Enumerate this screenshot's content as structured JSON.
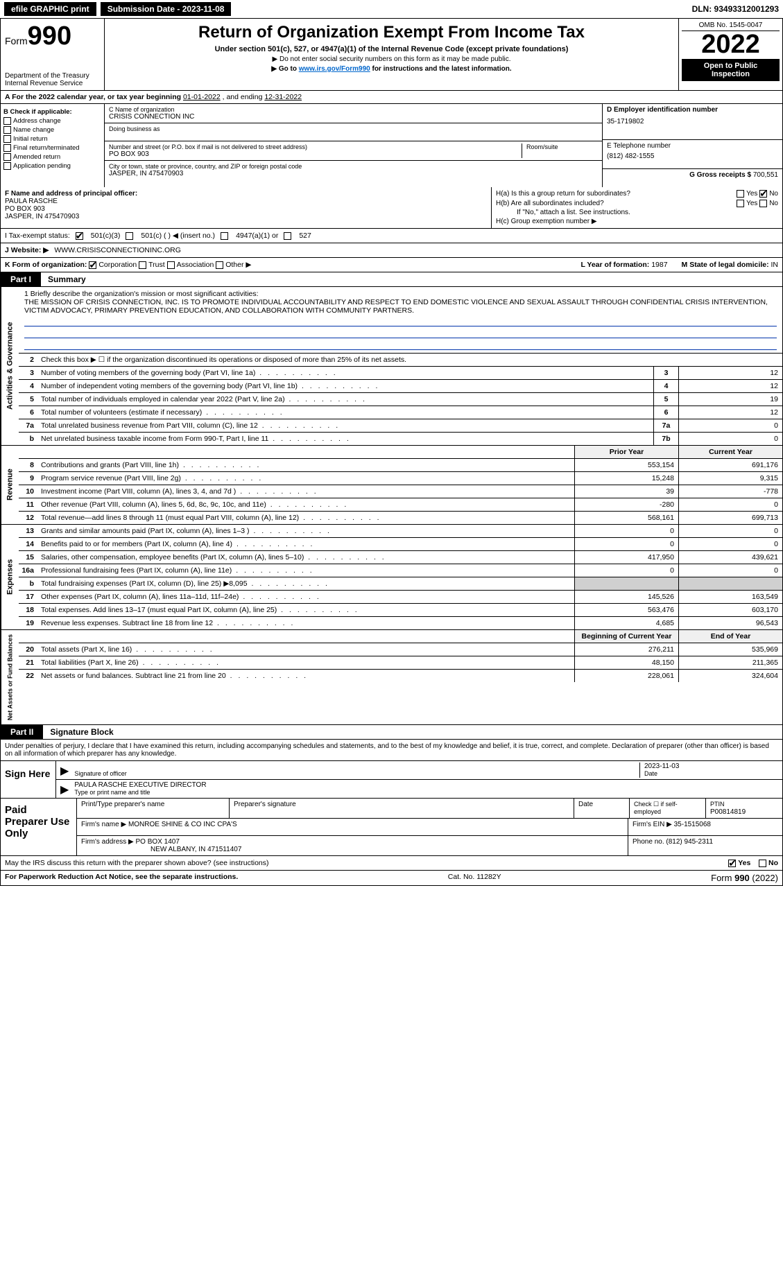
{
  "topbar": {
    "efile": "efile GRAPHIC print",
    "submission_label": "Submission Date - 2023-11-08",
    "dln": "DLN: 93493312001293"
  },
  "header": {
    "form_prefix": "Form",
    "form_number": "990",
    "dept": "Department of the Treasury",
    "irs": "Internal Revenue Service",
    "title": "Return of Organization Exempt From Income Tax",
    "subtitle": "Under section 501(c), 527, or 4947(a)(1) of the Internal Revenue Code (except private foundations)",
    "note1": "▶ Do not enter social security numbers on this form as it may be made public.",
    "note2_pre": "▶ Go to ",
    "note2_link": "www.irs.gov/Form990",
    "note2_post": " for instructions and the latest information.",
    "omb": "OMB No. 1545-0047",
    "year": "2022",
    "open": "Open to Public Inspection"
  },
  "rowA": {
    "text_pre": "A For the 2022 calendar year, or tax year beginning ",
    "begin": "01-01-2022",
    "mid": " , and ending ",
    "end": "12-31-2022"
  },
  "colB": {
    "hdr": "B Check if applicable:",
    "items": [
      "Address change",
      "Name change",
      "Initial return",
      "Final return/terminated",
      "Amended return",
      "Application pending"
    ]
  },
  "colC": {
    "name_lbl": "C Name of organization",
    "name": "CRISIS CONNECTION INC",
    "dba_lbl": "Doing business as",
    "street_lbl": "Number and street (or P.O. box if mail is not delivered to street address)",
    "room_lbl": "Room/suite",
    "street": "PO BOX 903",
    "city_lbl": "City or town, state or province, country, and ZIP or foreign postal code",
    "city": "JASPER, IN  475470903"
  },
  "colDE": {
    "d_lbl": "D Employer identification number",
    "ein": "35-1719802",
    "e_lbl": "E Telephone number",
    "phone": "(812) 482-1555",
    "g_lbl": "G Gross receipts $",
    "g_val": "700,551"
  },
  "rowF": {
    "lbl": "F Name and address of principal officer:",
    "name": "PAULA RASCHE",
    "addr1": "PO BOX 903",
    "addr2": "JASPER, IN  475470903"
  },
  "rowH": {
    "a": "H(a)  Is this a group return for subordinates?",
    "b": "H(b)  Are all subordinates included?",
    "b_note": "If \"No,\" attach a list. See instructions.",
    "c": "H(c)  Group exemption number ▶",
    "yes": "Yes",
    "no": "No"
  },
  "rowI": {
    "lbl": "I  Tax-exempt status:",
    "o1": "501(c)(3)",
    "o2": "501(c) (  ) ◀ (insert no.)",
    "o3": "4947(a)(1) or",
    "o4": "527"
  },
  "rowJ": {
    "lbl": "J  Website: ▶",
    "val": "WWW.CRISISCONNECTIONINC.ORG"
  },
  "rowK": {
    "lbl": "K Form of organization:",
    "o1": "Corporation",
    "o2": "Trust",
    "o3": "Association",
    "o4": "Other ▶"
  },
  "rowL": {
    "l": "L Year of formation:",
    "lval": "1987",
    "m": "M State of legal domicile:",
    "mval": "IN"
  },
  "part1": {
    "tag": "Part I",
    "title": "Summary"
  },
  "mission": {
    "lbl": "1  Briefly describe the organization's mission or most significant activities:",
    "text": "THE MISSION OF CRISIS CONNECTION, INC. IS TO PROMOTE INDIVIDUAL ACCOUNTABILITY AND RESPECT TO END DOMESTIC VIOLENCE AND SEXUAL ASSAULT THROUGH CONFIDENTIAL CRISIS INTERVENTION, VICTIM ADVOCACY, PRIMARY PREVENTION EDUCATION, AND COLLABORATION WITH COMMUNITY PARTNERS."
  },
  "gov": {
    "side": "Activities & Governance",
    "l2": "Check this box ▶ ☐ if the organization discontinued its operations or disposed of more than 25% of its net assets.",
    "rows": [
      {
        "n": "3",
        "lbl": "Number of voting members of the governing body (Part VI, line 1a)",
        "box": "3",
        "v": "12"
      },
      {
        "n": "4",
        "lbl": "Number of independent voting members of the governing body (Part VI, line 1b)",
        "box": "4",
        "v": "12"
      },
      {
        "n": "5",
        "lbl": "Total number of individuals employed in calendar year 2022 (Part V, line 2a)",
        "box": "5",
        "v": "19"
      },
      {
        "n": "6",
        "lbl": "Total number of volunteers (estimate if necessary)",
        "box": "6",
        "v": "12"
      },
      {
        "n": "7a",
        "lbl": "Total unrelated business revenue from Part VIII, column (C), line 12",
        "box": "7a",
        "v": "0"
      },
      {
        "n": "b",
        "lbl": "Net unrelated business taxable income from Form 990-T, Part I, line 11",
        "box": "7b",
        "v": "0"
      }
    ]
  },
  "pycy": {
    "py": "Prior Year",
    "cy": "Current Year"
  },
  "rev": {
    "side": "Revenue",
    "rows": [
      {
        "n": "8",
        "lbl": "Contributions and grants (Part VIII, line 1h)",
        "py": "553,154",
        "cy": "691,176"
      },
      {
        "n": "9",
        "lbl": "Program service revenue (Part VIII, line 2g)",
        "py": "15,248",
        "cy": "9,315"
      },
      {
        "n": "10",
        "lbl": "Investment income (Part VIII, column (A), lines 3, 4, and 7d )",
        "py": "39",
        "cy": "-778"
      },
      {
        "n": "11",
        "lbl": "Other revenue (Part VIII, column (A), lines 5, 6d, 8c, 9c, 10c, and 11e)",
        "py": "-280",
        "cy": "0"
      },
      {
        "n": "12",
        "lbl": "Total revenue—add lines 8 through 11 (must equal Part VIII, column (A), line 12)",
        "py": "568,161",
        "cy": "699,713"
      }
    ]
  },
  "exp": {
    "side": "Expenses",
    "rows": [
      {
        "n": "13",
        "lbl": "Grants and similar amounts paid (Part IX, column (A), lines 1–3 )",
        "py": "0",
        "cy": "0"
      },
      {
        "n": "14",
        "lbl": "Benefits paid to or for members (Part IX, column (A), line 4)",
        "py": "0",
        "cy": "0"
      },
      {
        "n": "15",
        "lbl": "Salaries, other compensation, employee benefits (Part IX, column (A), lines 5–10)",
        "py": "417,950",
        "cy": "439,621"
      },
      {
        "n": "16a",
        "lbl": "Professional fundraising fees (Part IX, column (A), line 11e)",
        "py": "0",
        "cy": "0"
      },
      {
        "n": "b",
        "lbl": "Total fundraising expenses (Part IX, column (D), line 25) ▶8,095",
        "py": "",
        "cy": "",
        "shade": true
      },
      {
        "n": "17",
        "lbl": "Other expenses (Part IX, column (A), lines 11a–11d, 11f–24e)",
        "py": "145,526",
        "cy": "163,549"
      },
      {
        "n": "18",
        "lbl": "Total expenses. Add lines 13–17 (must equal Part IX, column (A), line 25)",
        "py": "563,476",
        "cy": "603,170"
      },
      {
        "n": "19",
        "lbl": "Revenue less expenses. Subtract line 18 from line 12",
        "py": "4,685",
        "cy": "96,543"
      }
    ]
  },
  "na": {
    "side": "Net Assets or Fund Balances",
    "hdr_py": "Beginning of Current Year",
    "hdr_cy": "End of Year",
    "rows": [
      {
        "n": "20",
        "lbl": "Total assets (Part X, line 16)",
        "py": "276,211",
        "cy": "535,969"
      },
      {
        "n": "21",
        "lbl": "Total liabilities (Part X, line 26)",
        "py": "48,150",
        "cy": "211,365"
      },
      {
        "n": "22",
        "lbl": "Net assets or fund balances. Subtract line 21 from line 20",
        "py": "228,061",
        "cy": "324,604"
      }
    ]
  },
  "part2": {
    "tag": "Part II",
    "title": "Signature Block"
  },
  "sig": {
    "penalty": "Under penalties of perjury, I declare that I have examined this return, including accompanying schedules and statements, and to the best of my knowledge and belief, it is true, correct, and complete. Declaration of preparer (other than officer) is based on all information of which preparer has any knowledge.",
    "sign_here": "Sign Here",
    "sig_of_officer": "Signature of officer",
    "date_lbl": "Date",
    "date": "2023-11-03",
    "name_title": "PAULA RASCHE  EXECUTIVE DIRECTOR",
    "type_lbl": "Type or print name and title"
  },
  "paid": {
    "left": "Paid Preparer Use Only",
    "h1": "Print/Type preparer's name",
    "h2": "Preparer's signature",
    "h3": "Date",
    "h4a": "Check ☐ if self-employed",
    "h4b": "PTIN",
    "ptin": "P00814819",
    "firm_lbl": "Firm's name    ▶",
    "firm": "MONROE SHINE & CO INC CPA'S",
    "ein_lbl": "Firm's EIN ▶",
    "ein": "35-1515068",
    "addr_lbl": "Firm's address ▶",
    "addr1": "PO BOX 1407",
    "addr2": "NEW ALBANY, IN  471511407",
    "phone_lbl": "Phone no.",
    "phone": "(812) 945-2311"
  },
  "discuss": {
    "q": "May the IRS discuss this return with the preparer shown above? (see instructions)",
    "yes": "Yes",
    "no": "No"
  },
  "footer": {
    "l": "For Paperwork Reduction Act Notice, see the separate instructions.",
    "m": "Cat. No. 11282Y",
    "r_pre": "Form ",
    "r_form": "990",
    "r_post": " (2022)"
  }
}
